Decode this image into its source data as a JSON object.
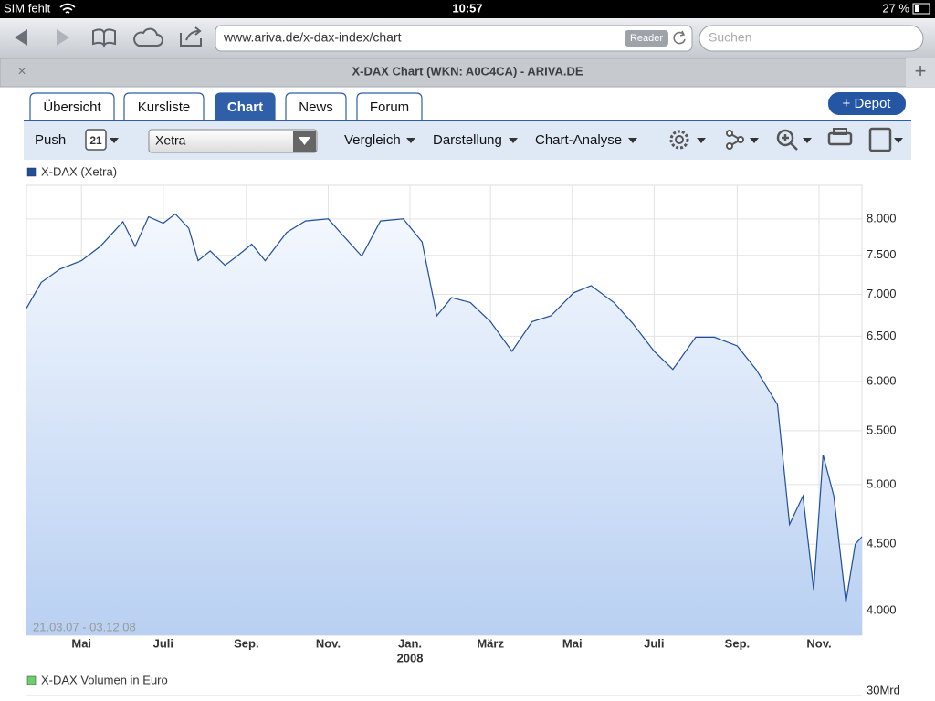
{
  "status_bar": {
    "carrier": "SIM fehlt",
    "time": "10:57",
    "battery": "27 %"
  },
  "browser": {
    "url": "www.ariva.de/x-dax-index/chart",
    "reader": "Reader",
    "search": "Suchen",
    "tab_title": "X-DAX Chart (WKN: A0C4CA) - ARIVA.DE"
  },
  "nav_tabs": [
    "Übersicht",
    "Kursliste",
    "Chart",
    "News",
    "Forum"
  ],
  "depot_button": "+ Depot",
  "toolbar": {
    "push": "Push",
    "calendar": "21",
    "exchange": "Xetra",
    "menus": [
      "Vergleich",
      "Darstellung",
      "Chart-Analyse"
    ]
  },
  "chart_data": {
    "type": "line",
    "log_scale": true,
    "grid": true,
    "range_label": "21.03.07 - 03.12.08",
    "xlim": [
      "2007-03-21",
      "2008-12-03"
    ],
    "xticks": [
      {
        "value": "2007-05-01",
        "label": "Mai"
      },
      {
        "value": "2007-07-01",
        "label": "Juli"
      },
      {
        "value": "2007-09-01",
        "label": "Sep."
      },
      {
        "value": "2007-11-01",
        "label": "Nov."
      },
      {
        "value": "2008-01-01",
        "label": "Jan."
      },
      {
        "value": "2008-03-01",
        "label": "März"
      },
      {
        "value": "2008-05-01",
        "label": "Mai"
      },
      {
        "value": "2008-07-01",
        "label": "Juli"
      },
      {
        "value": "2008-09-01",
        "label": "Sep."
      },
      {
        "value": "2008-11-01",
        "label": "Nov."
      }
    ],
    "year_label": {
      "value": "2008-01-01",
      "label": "2008"
    },
    "ylim": [
      3830,
      8490
    ],
    "yticks": [
      {
        "value": 4000,
        "label": "4.000"
      },
      {
        "value": 4500,
        "label": "4.500"
      },
      {
        "value": 5000,
        "label": "5.000"
      },
      {
        "value": 5500,
        "label": "5.500"
      },
      {
        "value": 6000,
        "label": "6.000"
      },
      {
        "value": 6500,
        "label": "6.500"
      },
      {
        "value": 7000,
        "label": "7.000"
      },
      {
        "value": 7500,
        "label": "7.500"
      },
      {
        "value": 8000,
        "label": "8.000"
      }
    ],
    "x": [
      "2007-03-21",
      "2007-04-01",
      "2007-04-15",
      "2007-05-01",
      "2007-05-15",
      "2007-06-01",
      "2007-06-10",
      "2007-06-20",
      "2007-07-01",
      "2007-07-10",
      "2007-07-20",
      "2007-07-27",
      "2007-08-05",
      "2007-08-16",
      "2007-08-25",
      "2007-09-05",
      "2007-09-15",
      "2007-10-01",
      "2007-10-15",
      "2007-11-01",
      "2007-11-12",
      "2007-11-26",
      "2007-12-10",
      "2007-12-27",
      "2008-01-10",
      "2008-01-21",
      "2008-02-01",
      "2008-02-15",
      "2008-03-01",
      "2008-03-17",
      "2008-04-01",
      "2008-04-15",
      "2008-05-02",
      "2008-05-15",
      "2008-06-01",
      "2008-06-15",
      "2008-07-01",
      "2008-07-15",
      "2008-08-01",
      "2008-08-15",
      "2008-09-01",
      "2008-09-15",
      "2008-10-01",
      "2008-10-10",
      "2008-10-20",
      "2008-10-28",
      "2008-11-04",
      "2008-11-12",
      "2008-11-21",
      "2008-11-28",
      "2008-12-03"
    ],
    "series": [
      {
        "name": "X-DAX (Xetra)",
        "color": "#1f4e9c",
        "values": [
          6830,
          7150,
          7320,
          7430,
          7620,
          7960,
          7620,
          8030,
          7940,
          8070,
          7870,
          7430,
          7560,
          7370,
          7490,
          7650,
          7430,
          7810,
          7970,
          8000,
          7770,
          7490,
          7970,
          8000,
          7680,
          6740,
          6960,
          6900,
          6670,
          6330,
          6670,
          6740,
          7020,
          7110,
          6900,
          6650,
          6330,
          6130,
          6490,
          6490,
          6390,
          6130,
          5760,
          4660,
          4900,
          4150,
          5270,
          4900,
          4060,
          4500,
          4560
        ]
      }
    ]
  },
  "volume_chart": {
    "legend": "X-DAX Volumen in Euro",
    "color": "#6ccf6c",
    "ytick": {
      "value": 30000000000,
      "label": "30Mrd"
    }
  }
}
